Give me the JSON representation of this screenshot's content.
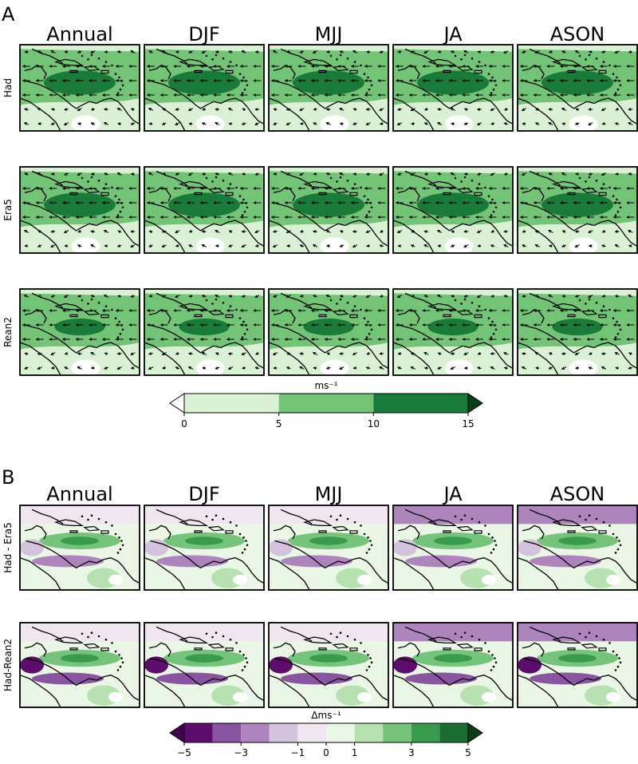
{
  "chart_data": [
    {
      "type": "heatmap",
      "panel_label": "A",
      "description_type": "map grid: wind speed shading with wind vectors",
      "columns": [
        "Annual",
        "DJF",
        "MJJ",
        "JA",
        "ASON"
      ],
      "rows": [
        "Had",
        "Era5",
        "Rean2"
      ],
      "colorbar": {
        "label": "ms⁻¹",
        "ticks": [
          "0",
          "5",
          "10",
          "15"
        ],
        "bounds": [
          0,
          5,
          10,
          15
        ],
        "colors": [
          "#dbf1d6",
          "#73c476",
          "#1a7a3a"
        ],
        "extend": "both"
      }
    },
    {
      "type": "heatmap",
      "panel_label": "B",
      "description_type": "map grid: wind speed difference shading",
      "columns": [
        "Annual",
        "DJF",
        "MJJ",
        "JA",
        "ASON"
      ],
      "rows": [
        "Had - Era5",
        "Had-Rean2"
      ],
      "colorbar": {
        "label": "Δms⁻¹",
        "ticks": [
          "−5",
          "−3",
          "−1",
          "0",
          "1",
          "3",
          "5"
        ],
        "bounds": [
          -5,
          -4,
          -3,
          -2,
          -1,
          0,
          1,
          2,
          3,
          4,
          5
        ],
        "colors": [
          "#5d0d6b",
          "#8a55a0",
          "#ad85bc",
          "#d4c3dd",
          "#efe6f0",
          "#eaf6e6",
          "#b7e1b0",
          "#76c47c",
          "#3a9a4f",
          "#1c6b32"
        ],
        "extend": "both"
      }
    }
  ]
}
